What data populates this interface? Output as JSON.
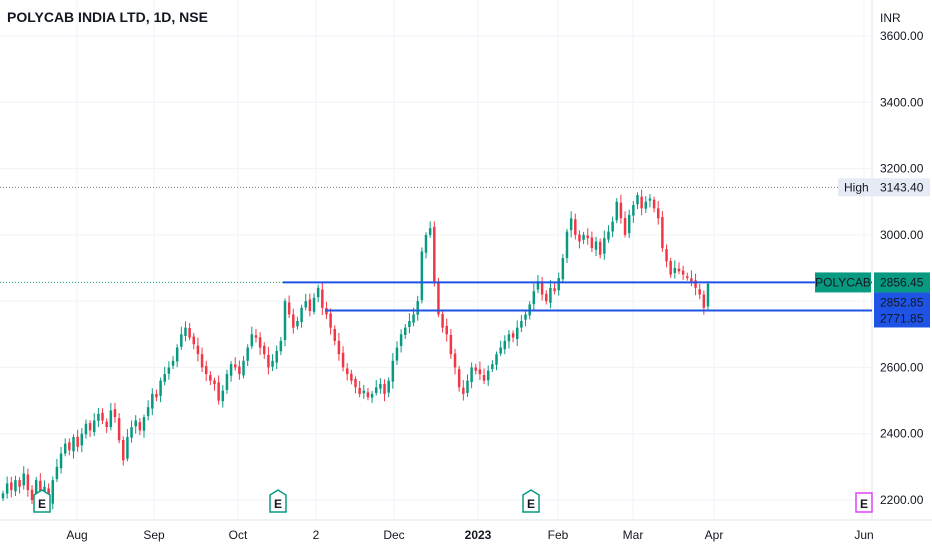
{
  "header": {
    "title": "POLYCAB INDIA LTD, 1D, NSE"
  },
  "chart_data": {
    "type": "candlestick",
    "currency": "INR",
    "y_ticks": [
      "3600.00",
      "3400.00",
      "3200.00",
      "3000.00",
      "2800.00",
      "2600.00",
      "2400.00",
      "2200.00"
    ],
    "ylim": [
      2150,
      3690
    ],
    "x_labels": [
      "Aug",
      "Sep",
      "Oct",
      "2",
      "Dec",
      "2023",
      "Feb",
      "Mar",
      "Apr",
      "Jun"
    ],
    "x_bold": [
      "2023"
    ],
    "high_label": "High",
    "high_value": "3143.40",
    "ticker_label": "POLYCAB",
    "last_price": "2856.45",
    "price_labels": [
      "2852.85",
      "2771.85"
    ],
    "horizontal_lines": [
      2856.45,
      2771.85
    ],
    "earnings_marker": "E",
    "colors": {
      "up": "#089981",
      "down": "#f23645",
      "line": "#1e53e5",
      "earnings_past": "#089981",
      "earnings_future": "#e040fb"
    },
    "closes": [
      2220,
      2250,
      2230,
      2260,
      2240,
      2280,
      2230,
      2200,
      2260,
      2220,
      2240,
      2190,
      2260,
      2300,
      2340,
      2370,
      2350,
      2390,
      2360,
      2400,
      2430,
      2410,
      2440,
      2460,
      2440,
      2420,
      2470,
      2450,
      2380,
      2320,
      2390,
      2420,
      2440,
      2410,
      2450,
      2480,
      2520,
      2510,
      2560,
      2580,
      2600,
      2620,
      2660,
      2700,
      2720,
      2690,
      2670,
      2640,
      2600,
      2580,
      2560,
      2550,
      2500,
      2530,
      2580,
      2610,
      2600,
      2580,
      2620,
      2660,
      2700,
      2690,
      2660,
      2640,
      2600,
      2620,
      2650,
      2680,
      2800,
      2760,
      2720,
      2740,
      2780,
      2800,
      2770,
      2810,
      2840,
      2780,
      2760,
      2720,
      2680,
      2640,
      2600,
      2580,
      2560,
      2540,
      2520,
      2530,
      2510,
      2520,
      2540,
      2550,
      2520,
      2560,
      2620,
      2660,
      2700,
      2720,
      2740,
      2760,
      2800,
      2950,
      3000,
      3020,
      2860,
      2760,
      2720,
      2700,
      2640,
      2600,
      2540,
      2520,
      2560,
      2600,
      2590,
      2580,
      2560,
      2590,
      2610,
      2640,
      2660,
      2680,
      2700,
      2690,
      2720,
      2740,
      2760,
      2790,
      2830,
      2860,
      2820,
      2800,
      2840,
      2830,
      2870,
      2930,
      3010,
      3050,
      3000,
      2980,
      3000,
      2990,
      2960,
      2980,
      2940,
      2990,
      3010,
      3040,
      3100,
      3050,
      3000,
      3060,
      3090,
      3120,
      3080,
      3100,
      3110,
      3080,
      3050,
      2960,
      2920,
      2880,
      2900,
      2890,
      2880,
      2870,
      2860,
      2840,
      2820,
      2780,
      2852
    ]
  }
}
